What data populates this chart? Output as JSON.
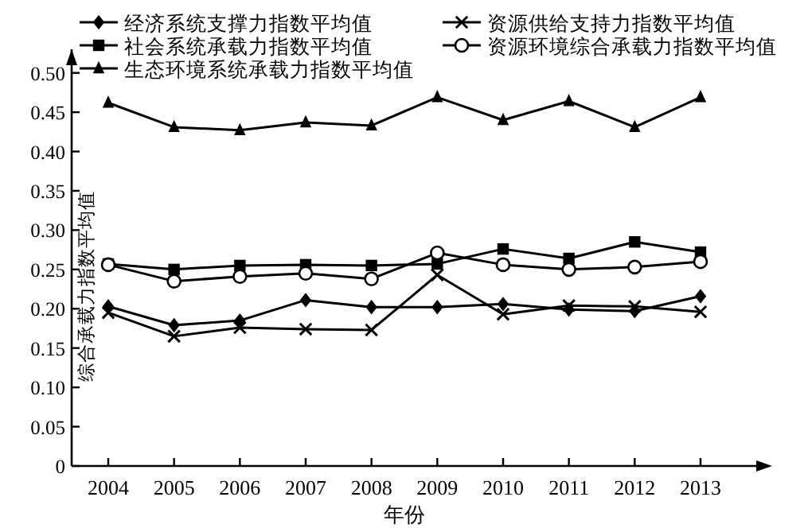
{
  "chart_data": {
    "type": "line",
    "xlabel": "年份",
    "ylabel": "综合承载力指数平均值",
    "categories": [
      "2004",
      "2005",
      "2006",
      "2007",
      "2008",
      "2009",
      "2010",
      "2011",
      "2012",
      "2013"
    ],
    "series": [
      {
        "name": "经济系统支撑力指数平均值",
        "color": "#000000",
        "marker": "diamond",
        "values": [
          0.203,
          0.179,
          0.185,
          0.211,
          0.202,
          0.202,
          0.206,
          0.199,
          0.197,
          0.216
        ]
      },
      {
        "name": "资源供给支持力指数平均值",
        "color": "#000000",
        "marker": "cross",
        "values": [
          0.195,
          0.165,
          0.176,
          0.174,
          0.173,
          0.243,
          0.193,
          0.204,
          0.203,
          0.196
        ]
      },
      {
        "name": "社会系统承载力指数平均值",
        "color": "#000000",
        "marker": "square",
        "values": [
          0.257,
          0.25,
          0.255,
          0.256,
          0.255,
          0.257,
          0.276,
          0.264,
          0.285,
          0.272
        ]
      },
      {
        "name": "资源环境综合承载力指数平均值",
        "color": "#000000",
        "marker": "circle",
        "values": [
          0.256,
          0.235,
          0.241,
          0.245,
          0.238,
          0.271,
          0.256,
          0.25,
          0.253,
          0.26
        ]
      },
      {
        "name": "生态环境系统承载力指数平均值",
        "color": "#000000",
        "marker": "triangle",
        "values": [
          0.462,
          0.431,
          0.427,
          0.437,
          0.433,
          0.469,
          0.44,
          0.464,
          0.431,
          0.469
        ]
      }
    ],
    "ylim": [
      0,
      0.53
    ],
    "yticks": [
      0,
      0.05,
      {
        "value": 0.1,
        "label": "0.10"
      },
      0.15,
      {
        "value": 0.2,
        "label": "0.20"
      },
      0.25,
      {
        "value": 0.3,
        "label": "0.30"
      },
      0.35,
      {
        "value": 0.4,
        "label": "0.40"
      },
      0.45,
      {
        "value": 0.5,
        "label": "0.50"
      }
    ],
    "grid": false,
    "legend": "top left",
    "line_style": "solid"
  }
}
